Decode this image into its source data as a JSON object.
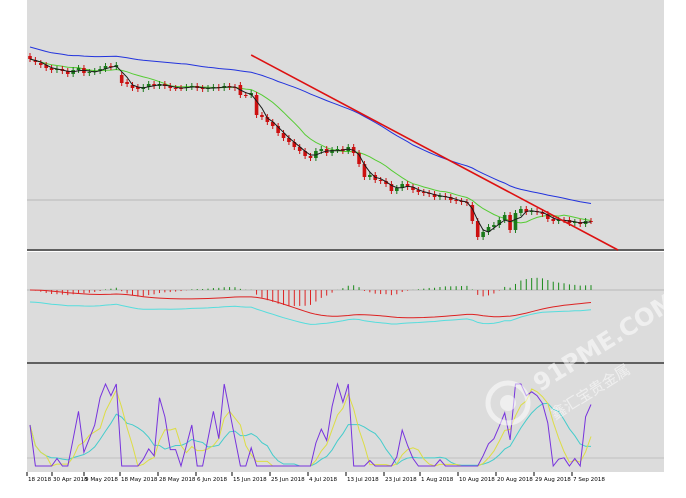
{
  "watermark": {
    "logo_text": "91PME.COM",
    "sub_text": "鑫汇宝贵金属"
  },
  "colors": {
    "panel_bg": "#dcdcdc",
    "page_bg": "#ffffff",
    "separator": "#606060",
    "bull_candle": "#1a7a1a",
    "bear_candle": "#cc1010",
    "ma_fast": "#1a1a1a",
    "ma_mid": "#55cc33",
    "ma_slow": "#2233dd",
    "trendline": "#dd1111",
    "macd_hist_pos": "#1a8a1a",
    "macd_hist_neg": "#dd2222",
    "macd_signal": "#dd2222",
    "macd_line": "#55dddd",
    "stoch_k": "#7733dd",
    "stoch_d": "#dddd44",
    "stoch_slow": "#44cccc",
    "level_line": "#b0b0b0"
  },
  "chart_data": {
    "type": "candlestick",
    "x": [
      "18 Apr 2018",
      "19 Apr 2018",
      "20 Apr 2018",
      "23 Apr 2018",
      "24 Apr 2018",
      "25 Apr 2018",
      "26 Apr 2018",
      "27 Apr 2018",
      "30 Apr 2018",
      "1 May 2018",
      "2 May 2018",
      "3 May 2018",
      "4 May 2018",
      "7 May 2018",
      "8 May 2018",
      "9 May 2018",
      "10 May 2018",
      "11 May 2018",
      "14 May 2018",
      "15 May 2018",
      "16 May 2018",
      "17 May 2018",
      "18 May 2018",
      "21 May 2018",
      "22 May 2018",
      "23 May 2018",
      "24 May 2018",
      "25 May 2018",
      "28 May 2018",
      "29 May 2018",
      "30 May 2018",
      "31 May 2018",
      "1 Jun 2018",
      "4 Jun 2018",
      "5 Jun 2018",
      "6 Jun 2018",
      "7 Jun 2018",
      "8 Jun 2018",
      "11 Jun 2018",
      "12 Jun 2018",
      "13 Jun 2018",
      "14 Jun 2018",
      "15 Jun 2018",
      "18 Jun 2018",
      "19 Jun 2018",
      "20 Jun 2018",
      "21 Jun 2018",
      "22 Jun 2018",
      "25 Jun 2018",
      "26 Jun 2018",
      "27 Jun 2018",
      "28 Jun 2018",
      "29 Jun 2018",
      "2 Jul 2018",
      "3 Jul 2018",
      "4 Jul 2018",
      "5 Jul 2018",
      "6 Jul 2018",
      "9 Jul 2018",
      "10 Jul 2018",
      "11 Jul 2018",
      "12 Jul 2018",
      "13 Jul 2018",
      "16 Jul 2018",
      "17 Jul 2018",
      "18 Jul 2018",
      "19 Jul 2018",
      "20 Jul 2018",
      "23 Jul 2018",
      "24 Jul 2018",
      "25 Jul 2018",
      "26 Jul 2018",
      "27 Jul 2018",
      "30 Jul 2018",
      "31 Jul 2018",
      "1 Aug 2018",
      "2 Aug 2018",
      "3 Aug 2018",
      "6 Aug 2018",
      "7 Aug 2018",
      "8 Aug 2018",
      "9 Aug 2018",
      "10 Aug 2018",
      "13 Aug 2018",
      "14 Aug 2018",
      "15 Aug 2018",
      "16 Aug 2018",
      "17 Aug 2018",
      "20 Aug 2018",
      "21 Aug 2018",
      "22 Aug 2018",
      "23 Aug 2018",
      "24 Aug 2018",
      "27 Aug 2018",
      "28 Aug 2018",
      "29 Aug 2018",
      "30 Aug 2018",
      "31 Aug 2018",
      "3 Sep 2018",
      "4 Sep 2018",
      "5 Sep 2018",
      "6 Sep 2018",
      "7 Sep 2018",
      "10 Sep 2018",
      "11 Sep 2018"
    ],
    "close": [
      34,
      37,
      40,
      43,
      45,
      44,
      46,
      49,
      45,
      43,
      48,
      47,
      46,
      44,
      41,
      42,
      40,
      58,
      59,
      63,
      64,
      62,
      59,
      61,
      59,
      61,
      63,
      63,
      63,
      62,
      61,
      63,
      64,
      63,
      62,
      63,
      61,
      62,
      63,
      70,
      70,
      68,
      90,
      92,
      97,
      101,
      108,
      113,
      117,
      122,
      126,
      131,
      133,
      126,
      124,
      128,
      125,
      124,
      126,
      122,
      128,
      139,
      152,
      150,
      155,
      156,
      159,
      166,
      163,
      159,
      162,
      165,
      167,
      168,
      169,
      172,
      171,
      172,
      175,
      176,
      177,
      178,
      196,
      212,
      207,
      202,
      200,
      195,
      190,
      205,
      188,
      184,
      187,
      186,
      187,
      189,
      194,
      196,
      195,
      195,
      198,
      197,
      199,
      196,
      196
    ],
    "open": [
      31,
      35,
      38,
      40,
      43,
      45,
      44,
      46,
      49,
      45,
      43,
      48,
      47,
      46,
      44,
      41,
      42,
      50,
      57,
      60,
      62,
      64,
      62,
      59,
      61,
      59,
      61,
      63,
      63,
      63,
      62,
      61,
      63,
      64,
      63,
      62,
      63,
      61,
      62,
      60,
      70,
      70,
      70,
      90,
      92,
      97,
      101,
      108,
      113,
      117,
      122,
      126,
      131,
      133,
      126,
      124,
      128,
      125,
      124,
      126,
      122,
      128,
      139,
      152,
      150,
      155,
      156,
      159,
      166,
      163,
      159,
      162,
      165,
      167,
      168,
      169,
      172,
      171,
      172,
      175,
      176,
      177,
      180,
      196,
      212,
      207,
      202,
      200,
      195,
      190,
      205,
      188,
      184,
      187,
      186,
      187,
      189,
      194,
      196,
      195,
      195,
      198,
      197,
      199,
      196
    ],
    "price_scale_note": "relative price units (no axis labels printed); smaller values are higher prices",
    "trendline": {
      "from": "14 Jun 2018",
      "to": "11 Sep 2018"
    },
    "indicators": [
      "MA fast",
      "MA medium",
      "MA slow",
      "MACD histogram",
      "MACD signal",
      "Stochastic"
    ],
    "x_tick_labels": [
      "18 2018",
      "30 Apr 2018",
      "9 May 2018",
      "18 May 2018",
      "28 May 2018",
      "6 Jun 2018",
      "15 Jun 2018",
      "25 Jun 2018",
      "4 Jul 2018",
      "13 Jul 2018",
      "23 Jul 2018",
      "1 Aug 2018",
      "10 Aug 2018",
      "20 Aug 2018",
      "29 Aug 2018",
      "7 Sep 2018"
    ],
    "grid": false
  }
}
